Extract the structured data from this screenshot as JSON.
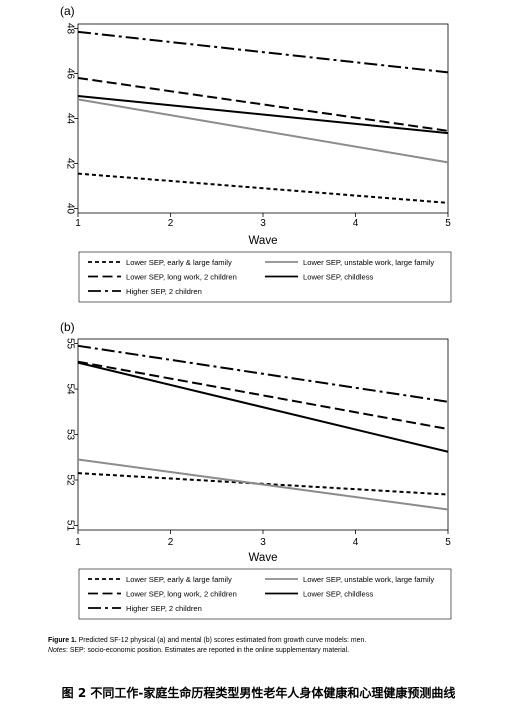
{
  "chart_data": [
    {
      "type": "line",
      "panel_label": "(a)",
      "xlabel": "Wave",
      "x": [
        1,
        5
      ],
      "xticks": [
        1,
        2,
        3,
        4,
        5
      ],
      "yticks": [
        40,
        42,
        44,
        46,
        48
      ],
      "ylim": [
        39.8,
        48.2
      ],
      "grid": false,
      "legend_position": "bottom",
      "series": [
        {
          "name": "Lower SEP, early & large family",
          "style": "short-dash",
          "color": "#000000",
          "values": [
            41.55,
            40.25
          ]
        },
        {
          "name": "Lower SEP, unstable work, large family",
          "style": "solid",
          "color": "#8c8c8c",
          "values": [
            44.85,
            42.05
          ]
        },
        {
          "name": "Lower SEP, long work, 2 children",
          "style": "long-dash",
          "color": "#000000",
          "values": [
            45.8,
            43.45
          ]
        },
        {
          "name": "Lower SEP, childless",
          "style": "solid",
          "color": "#000000",
          "values": [
            45.0,
            43.35
          ]
        },
        {
          "name": "Higher SEP, 2 children",
          "style": "dash-dot",
          "color": "#000000",
          "values": [
            47.85,
            46.05
          ]
        }
      ]
    },
    {
      "type": "line",
      "panel_label": "(b)",
      "xlabel": "Wave",
      "x": [
        1,
        5
      ],
      "xticks": [
        1,
        2,
        3,
        4,
        5
      ],
      "yticks": [
        51,
        52,
        53,
        54,
        55
      ],
      "ylim": [
        50.9,
        55.1
      ],
      "grid": false,
      "legend_position": "bottom",
      "series": [
        {
          "name": "Lower SEP, early & large family",
          "style": "short-dash",
          "color": "#000000",
          "values": [
            52.15,
            51.68
          ]
        },
        {
          "name": "Lower SEP, unstable work, large family",
          "style": "solid",
          "color": "#8c8c8c",
          "values": [
            52.45,
            51.35
          ]
        },
        {
          "name": "Lower SEP, long work, 2 children",
          "style": "long-dash",
          "color": "#000000",
          "values": [
            54.6,
            53.12
          ]
        },
        {
          "name": "Lower SEP, childless",
          "style": "solid",
          "color": "#000000",
          "values": [
            54.58,
            52.62
          ]
        },
        {
          "name": "Higher SEP, 2 children",
          "style": "dash-dot",
          "color": "#000000",
          "values": [
            54.95,
            53.72
          ]
        }
      ]
    }
  ],
  "caption": {
    "figure_label": "Figure 1.",
    "figure_text": " Predicted SF-12 physical (a) and mental (b) scores estimated from growth curve models: men.",
    "notes_label": "Notes",
    "notes_text": ": SEP: socio-economic position. Estimates are reported in the online supplementary material."
  },
  "cn_caption": "图 2  不同工作-家庭生命历程类型男性老年人身体健康和心理健康预测曲线"
}
